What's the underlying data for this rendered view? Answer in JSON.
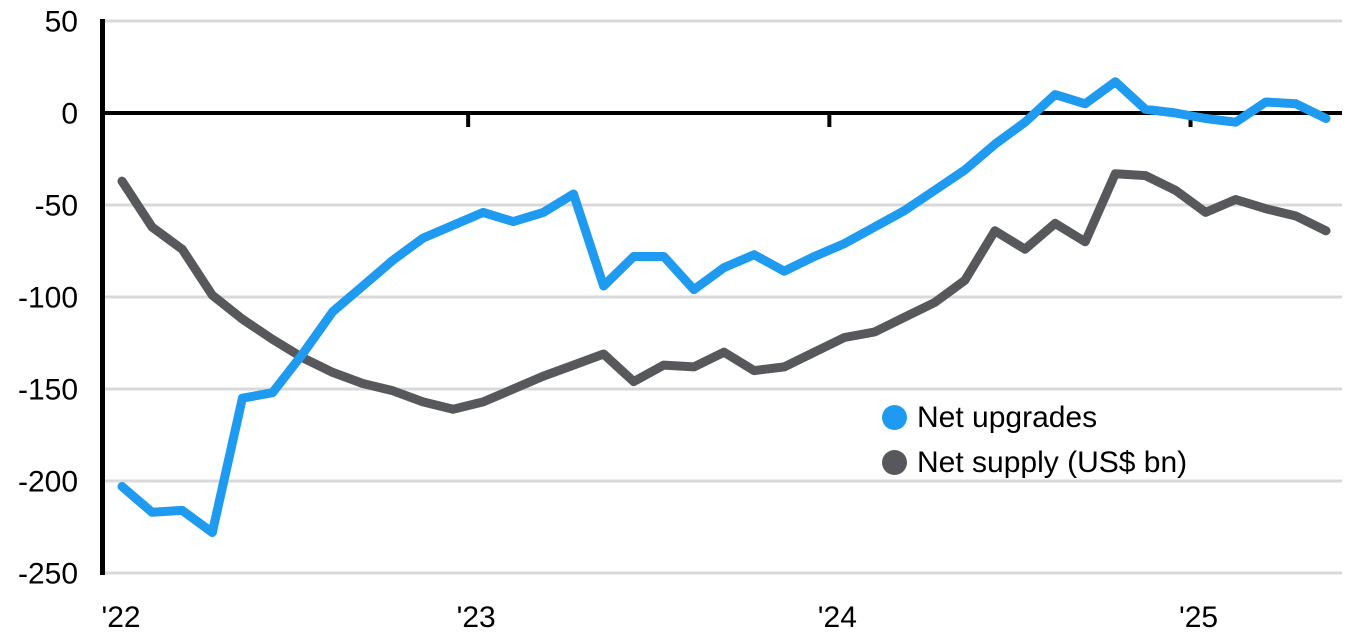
{
  "chart_data": {
    "type": "line",
    "title": "",
    "xlabel": "",
    "ylabel": "",
    "x": [
      "2022-01",
      "2022-02",
      "2022-03",
      "2022-04",
      "2022-05",
      "2022-06",
      "2022-07",
      "2022-08",
      "2022-09",
      "2022-10",
      "2022-11",
      "2022-12",
      "2023-01",
      "2023-02",
      "2023-03",
      "2023-04",
      "2023-05",
      "2023-06",
      "2023-07",
      "2023-08",
      "2023-09",
      "2023-10",
      "2023-11",
      "2023-12",
      "2024-01",
      "2024-02",
      "2024-03",
      "2024-04",
      "2024-05",
      "2024-06",
      "2024-07",
      "2024-08",
      "2024-09",
      "2024-10",
      "2024-11",
      "2024-12",
      "2025-01",
      "2025-02",
      "2025-03",
      "2025-04",
      "2025-05"
    ],
    "x_tick_labels": [
      "'22",
      "'23",
      "'24",
      "'25"
    ],
    "y_ticks": [
      50,
      0,
      -50,
      -100,
      -150,
      -200,
      -250
    ],
    "ylim": [
      -250,
      50
    ],
    "grid": "horizontal",
    "legend_position": "inside-bottom-right",
    "series": [
      {
        "name": "Net upgrades",
        "color": "#1E9BF0",
        "values": [
          -203,
          -217,
          -216,
          -228,
          -155,
          -152,
          -131,
          -108,
          -94,
          -80,
          -68,
          -61,
          -54,
          -59,
          -54,
          -44,
          -94,
          -78,
          -78,
          -96,
          -84,
          -77,
          -86,
          -78,
          -71,
          -62,
          -53,
          -42,
          -31,
          -17,
          -5,
          10,
          5,
          17,
          2,
          0,
          -3,
          -5,
          6,
          5,
          -3
        ]
      },
      {
        "name": "Net supply (US$ bn)",
        "color": "#57585B",
        "values": [
          -37,
          -62,
          -74,
          -99,
          -112,
          -123,
          -133,
          -141,
          -147,
          -151,
          -157,
          -161,
          -157,
          -150,
          -143,
          -137,
          -131,
          -146,
          -137,
          -138,
          -130,
          -140,
          -138,
          -130,
          -122,
          -119,
          -111,
          -103,
          -91,
          -64,
          -74,
          -60,
          -70,
          -33,
          -34,
          -42,
          -54,
          -47,
          -52,
          -56,
          -64
        ]
      }
    ],
    "colors": {
      "grid": "#D9D9D9",
      "axis": "#000000",
      "tick_label": "#000000",
      "background": "#FFFFFF"
    }
  }
}
